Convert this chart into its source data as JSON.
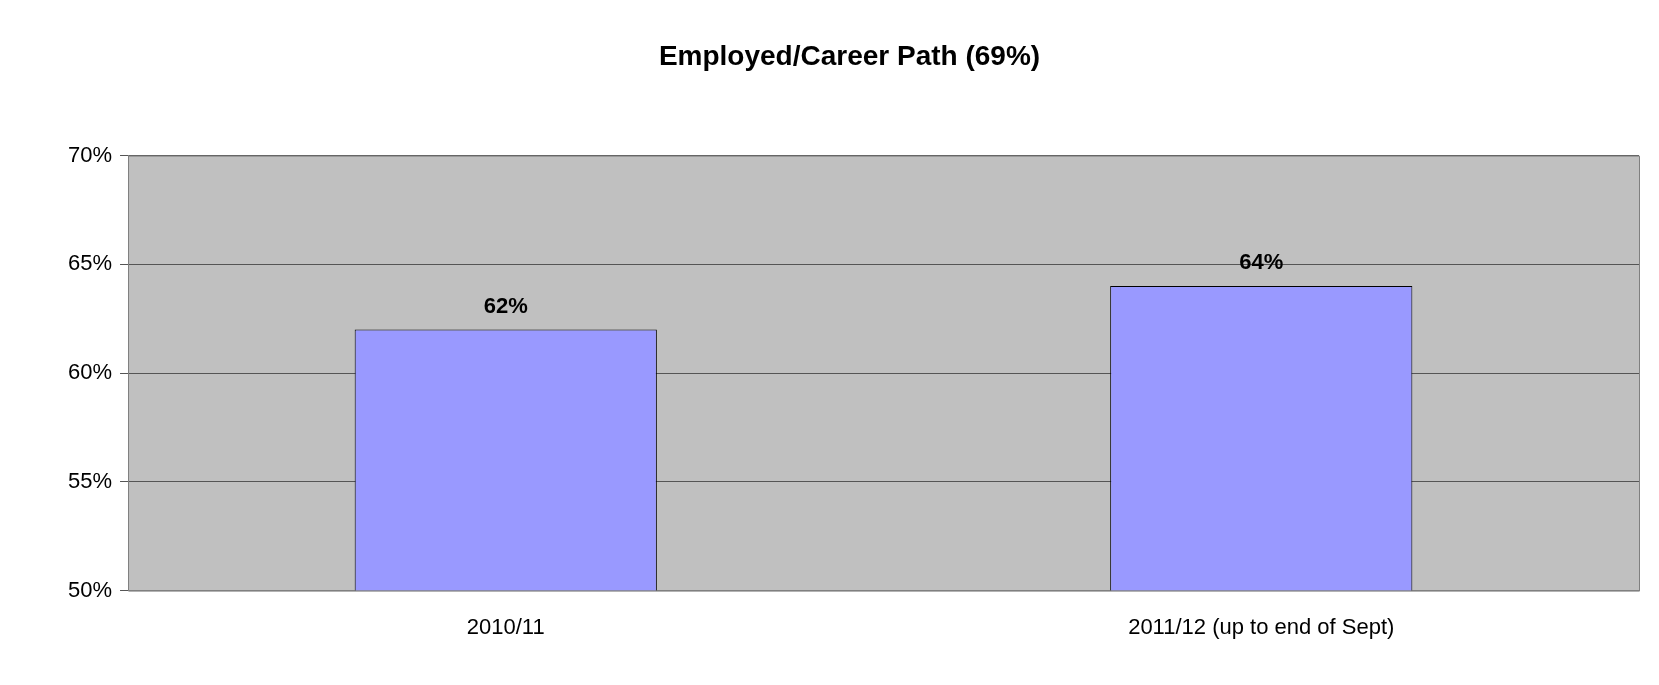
{
  "chart_data": {
    "type": "bar",
    "title": "Employed/Career Path (69%)",
    "categories": [
      "2010/11",
      "2011/12 (up to end of Sept)"
    ],
    "values": [
      62,
      64
    ],
    "color": "#9999ff",
    "value_labels": [
      "62%",
      "64%"
    ],
    "ylim": [
      50,
      70
    ],
    "yticks": [
      {
        "value": 50,
        "label": "50%"
      },
      {
        "value": 55,
        "label": "55%"
      },
      {
        "value": 60,
        "label": "60%"
      },
      {
        "value": 65,
        "label": "65%"
      },
      {
        "value": 70,
        "label": "70%"
      }
    ],
    "grid": "y",
    "legend": false
  }
}
